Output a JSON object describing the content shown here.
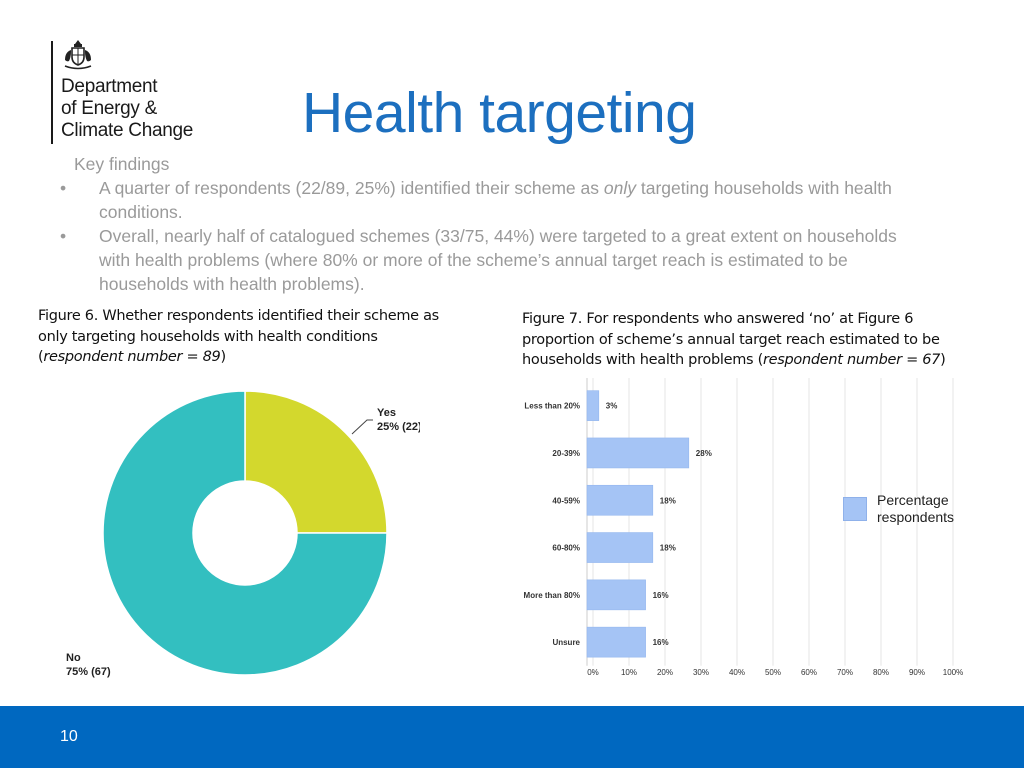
{
  "logo": {
    "line1": "Department",
    "line2": "of Energy &",
    "line3": "Climate Change"
  },
  "title": "Health targeting",
  "findings": {
    "heading": "Key findings",
    "bullets": [
      {
        "before": "A quarter of respondents (22/89, 25%) identified their scheme as ",
        "emph": "only",
        "after": " targeting households with health conditions."
      },
      {
        "text": "Overall, nearly half of catalogued schemes (33/75, 44%) were targeted to a great extent on households with health problems (where 80% or more of the scheme’s annual target reach is estimated to be households with health problems)."
      }
    ]
  },
  "figure6": {
    "caption": "Figure 6. Whether respondents identified their scheme as only targeting households with health conditions (",
    "caption_italic": "respondent number = 89",
    "caption_end": ")"
  },
  "figure7": {
    "caption": "Figure 7. For respondents who answered ‘no’ at Figure 6 proportion of scheme’s annual target reach estimated to be households with health problems (",
    "caption_italic": "respondent number = 67",
    "caption_end": ")"
  },
  "legend": {
    "label": "Percentage respondents"
  },
  "footer": {
    "page": "10"
  },
  "colors": {
    "title": "#1c6fbf",
    "footer": "#0068c0",
    "yes": "#d3d82d",
    "no": "#33bfc0",
    "bar": "#a5c4f5"
  },
  "chart_data": [
    {
      "type": "pie",
      "donut": true,
      "slices": [
        {
          "name": "Yes",
          "value": 25,
          "count": 22,
          "label": "25% (22)",
          "color": "#d3d82d"
        },
        {
          "name": "No",
          "value": 75,
          "count": 67,
          "label": "75% (67)",
          "color": "#33bfc0"
        }
      ]
    },
    {
      "type": "bar",
      "orientation": "horizontal",
      "categories": [
        "Less than 20%",
        "20-39%",
        "40-59%",
        "60-80%",
        "More than 80%",
        "Unsure"
      ],
      "values": [
        3,
        28,
        18,
        18,
        16,
        16
      ],
      "value_labels": [
        "3%",
        "28%",
        "18%",
        "18%",
        "16%",
        "16%"
      ],
      "xticks": [
        "0%",
        "10%",
        "20%",
        "30%",
        "40%",
        "50%",
        "60%",
        "70%",
        "80%",
        "90%",
        "100%"
      ],
      "xlim": [
        0,
        100
      ],
      "series_name": "Percentage respondents",
      "grid": true
    }
  ]
}
